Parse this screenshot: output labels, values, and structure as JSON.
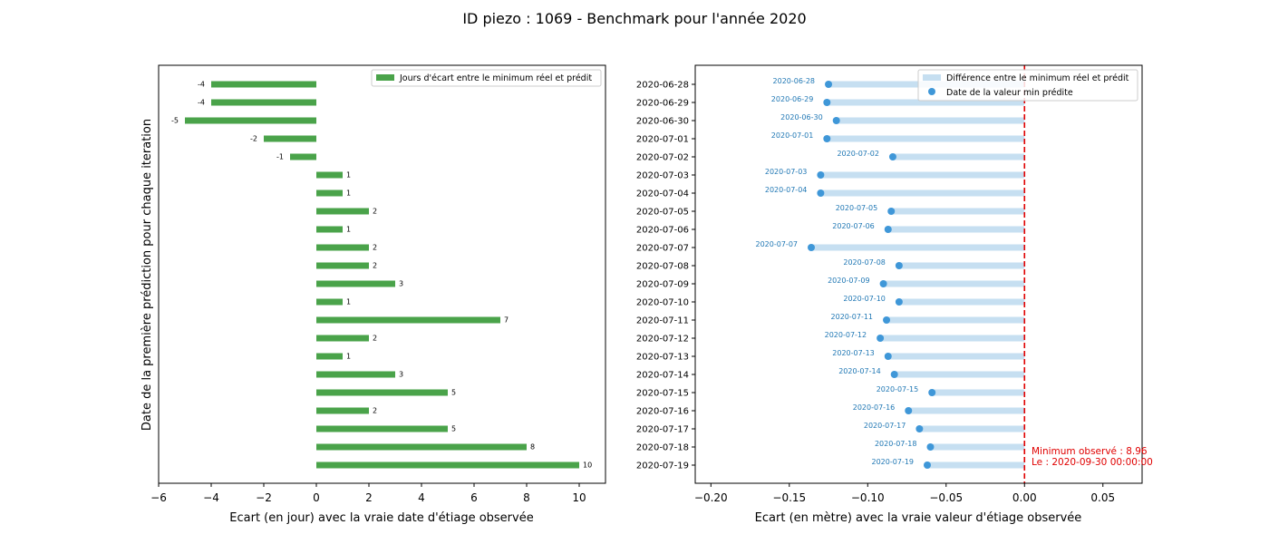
{
  "figure_title": "ID piezo : 1069 - Benchmark pour l'année 2020",
  "colors": {
    "bar_green": "#4aa34a",
    "dot_blue": "#3f97d8",
    "diff_band": "#c6dff1",
    "label_blue": "#1f77b4",
    "annotation_red": "#e00000"
  },
  "chart_data": [
    {
      "type": "bar",
      "orientation": "horizontal",
      "title": "",
      "xlabel": "Ecart (en jour) avec la vraie date d'étiage observée",
      "ylabel": "Date de la première prédiction pour chaque iteration",
      "xlim": [
        -6,
        11
      ],
      "xticks": [
        -6,
        -4,
        -2,
        0,
        2,
        4,
        6,
        8,
        10
      ],
      "legend": {
        "entries": [
          "Jours d'écart entre le minimum réel et prédit"
        ],
        "placement": "top-right"
      },
      "series": [
        {
          "name": "Jours d'écart entre le minimum réel et prédit",
          "values": [
            -4,
            -4,
            -5,
            -2,
            -1,
            1,
            1,
            2,
            1,
            2,
            2,
            3,
            1,
            7,
            2,
            1,
            3,
            5,
            2,
            5,
            8,
            10
          ]
        }
      ],
      "grid": false
    },
    {
      "type": "scatter",
      "orientation": "horizontal",
      "title": "",
      "xlabel": "Ecart (en mètre) avec la vraie valeur d'étiage observée",
      "ylabel": "",
      "xlim": [
        -0.21,
        0.075
      ],
      "xticks": [
        -0.2,
        -0.15,
        -0.1,
        -0.05,
        0.0,
        0.05
      ],
      "xtick_labels": [
        "−0.20",
        "−0.15",
        "−0.10",
        "−0.05",
        "0.00",
        "0.05"
      ],
      "categories": [
        "2020-06-28",
        "2020-06-29",
        "2020-06-30",
        "2020-07-01",
        "2020-07-02",
        "2020-07-03",
        "2020-07-04",
        "2020-07-05",
        "2020-07-06",
        "2020-07-07",
        "2020-07-08",
        "2020-07-09",
        "2020-07-10",
        "2020-07-11",
        "2020-07-12",
        "2020-07-13",
        "2020-07-14",
        "2020-07-15",
        "2020-07-16",
        "2020-07-17",
        "2020-07-18",
        "2020-07-19"
      ],
      "series": [
        {
          "name": "Différence entre le minimum réel et prédit",
          "kind": "band"
        },
        {
          "name": "Date de la valeur min prédite",
          "kind": "points",
          "values": [
            -0.125,
            -0.126,
            -0.12,
            -0.126,
            -0.084,
            -0.13,
            -0.13,
            -0.085,
            -0.087,
            -0.136,
            -0.08,
            -0.09,
            -0.08,
            -0.088,
            -0.092,
            -0.087,
            -0.083,
            -0.059,
            -0.074,
            -0.067,
            -0.06,
            -0.062
          ],
          "labels": [
            "2020-06-28",
            "2020-06-29",
            "2020-06-30",
            "2020-07-01",
            "2020-07-02",
            "2020-07-03",
            "2020-07-04",
            "2020-07-05",
            "2020-07-06",
            "2020-07-07",
            "2020-07-08",
            "2020-07-09",
            "2020-07-10",
            "2020-07-11",
            "2020-07-12",
            "2020-07-13",
            "2020-07-14",
            "2020-07-15",
            "2020-07-16",
            "2020-07-17",
            "2020-07-18",
            "2020-07-19"
          ]
        }
      ],
      "reference_line": {
        "x": 0,
        "style": "dashed"
      },
      "annotation": {
        "line1": "Minimum observé : 8.96",
        "line2": "Le : 2020-09-30 00:00:00"
      },
      "legend": {
        "entries": [
          "Différence entre le minimum réel et prédit",
          "Date de la valeur min prédite"
        ],
        "placement": "top-right"
      },
      "grid": false
    }
  ]
}
